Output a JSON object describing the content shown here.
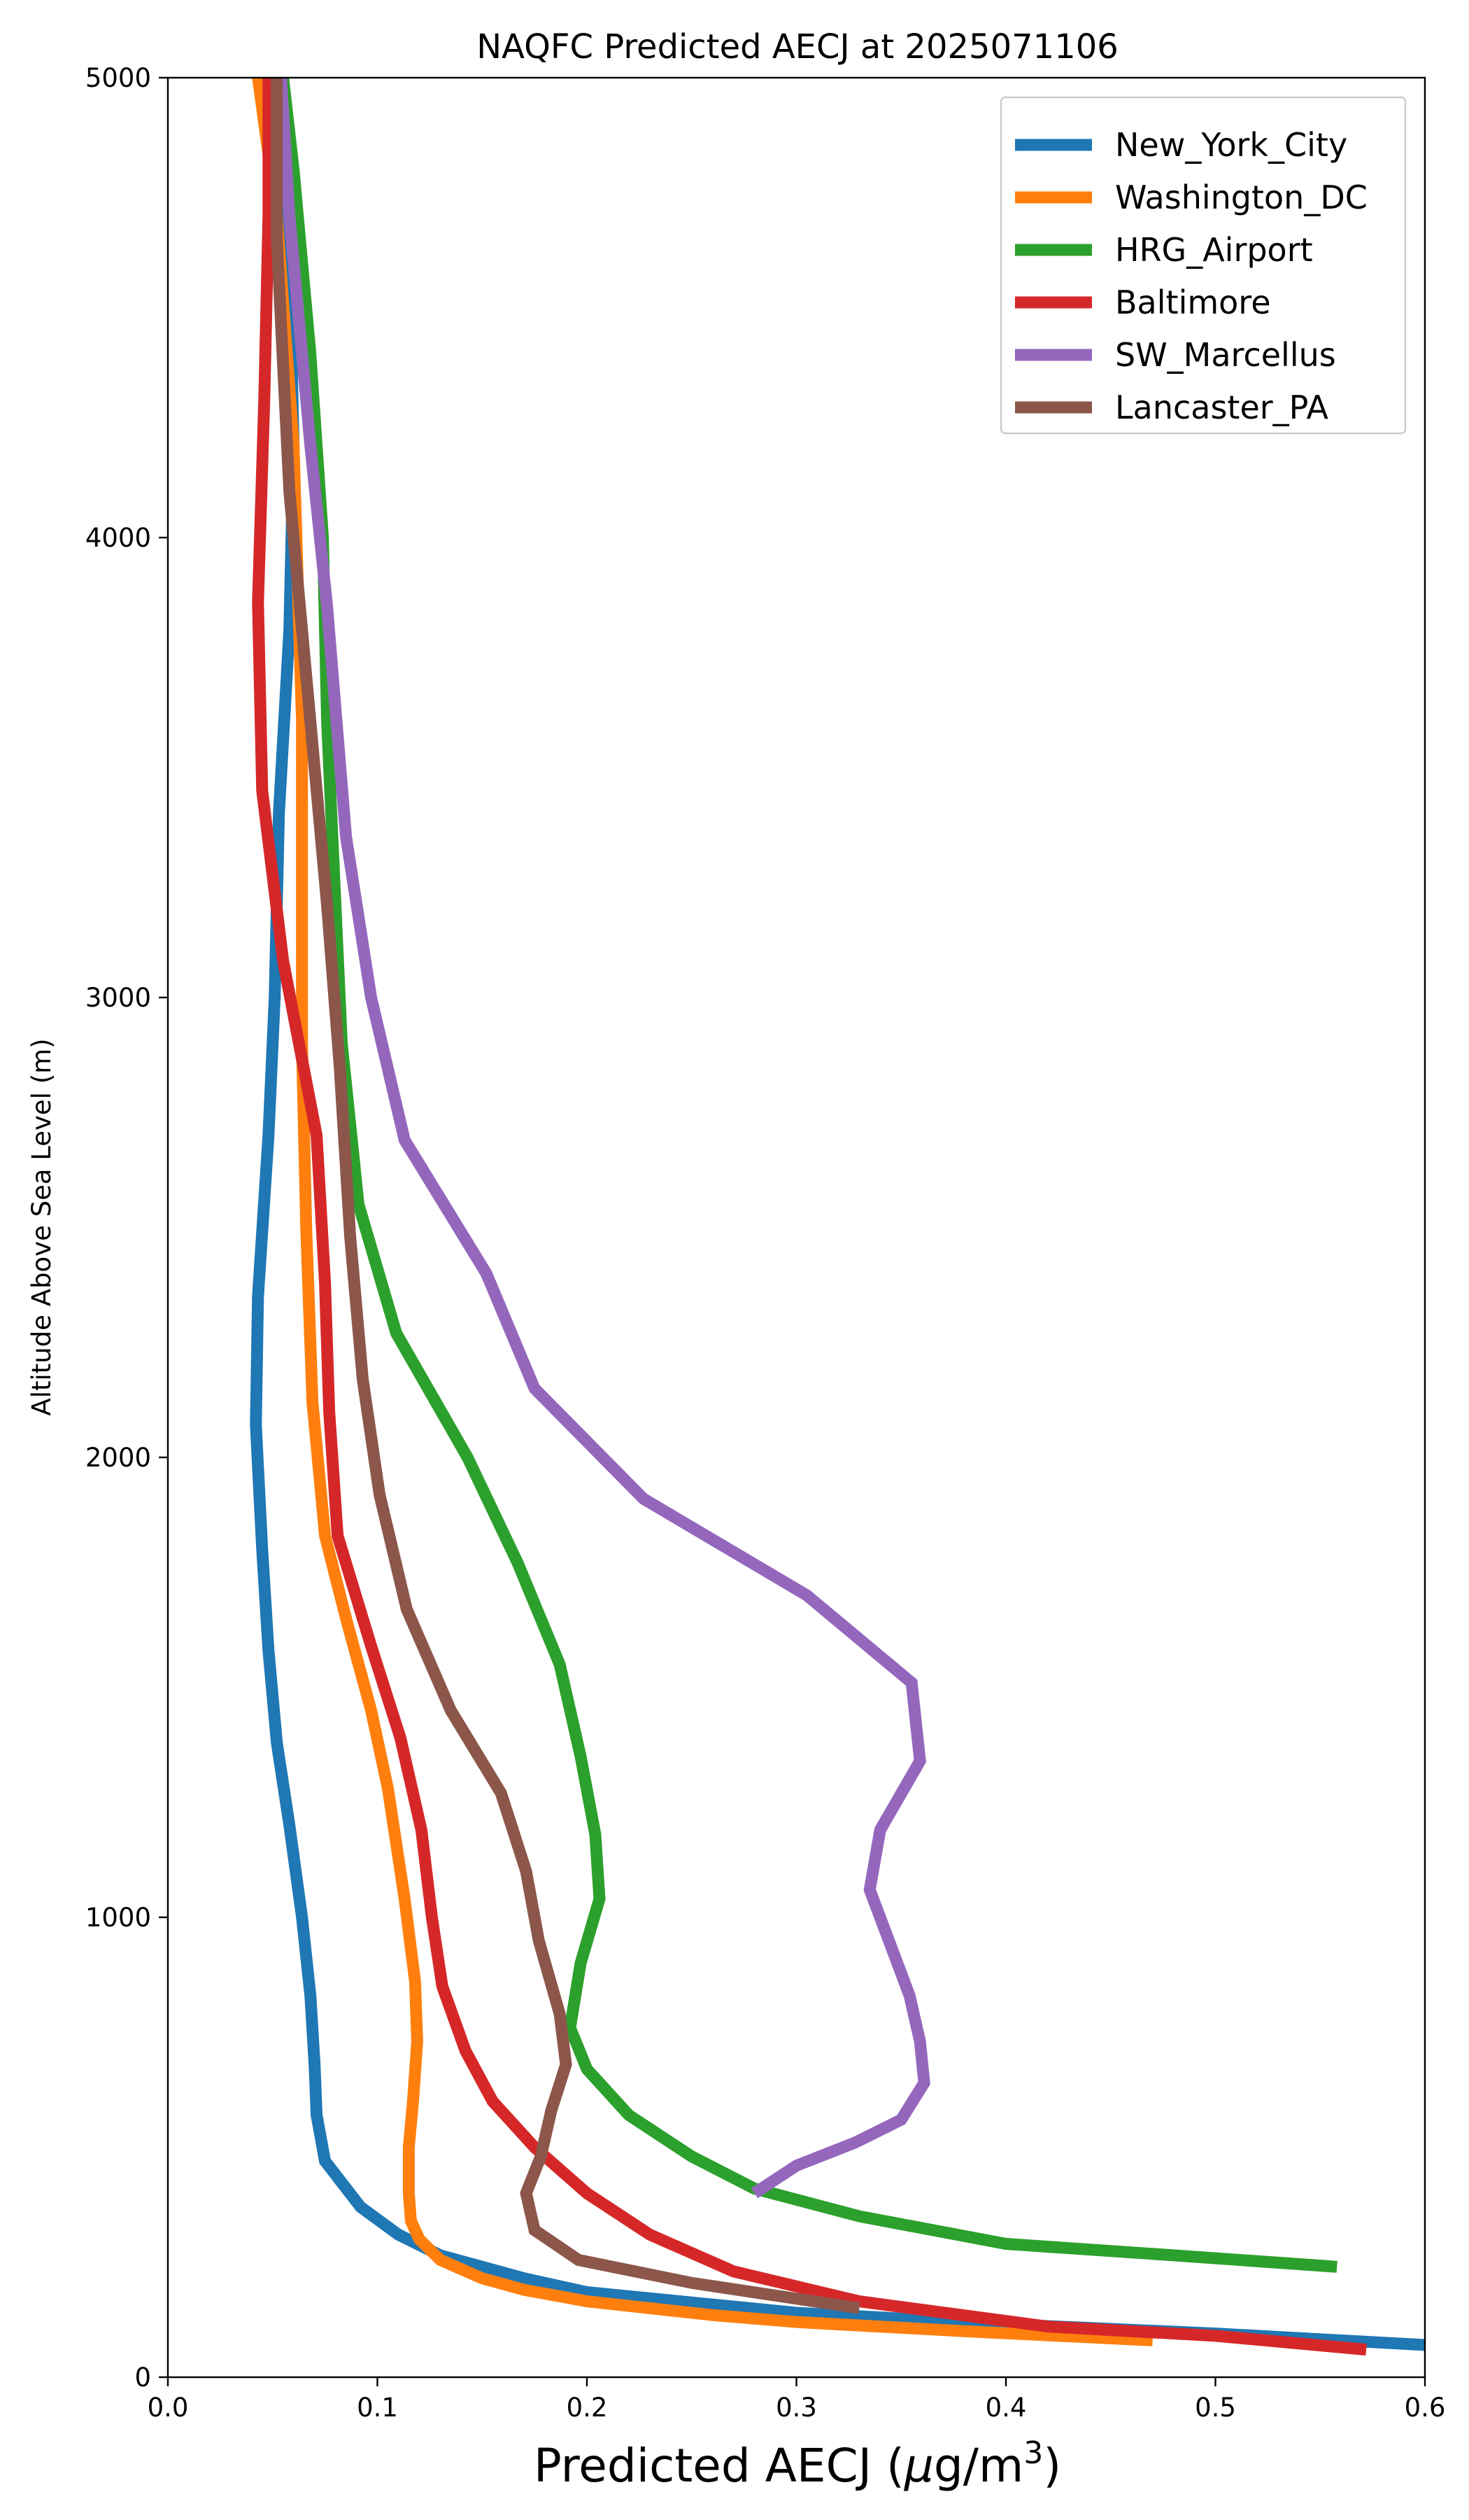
{
  "chart_data": {
    "type": "line",
    "title": "NAQFC Predicted AECJ at 2025071106",
    "xlabel_main": "Predicted AECJ (",
    "xlabel_mu": "μ",
    "xlabel_unit": "g/m",
    "xlabel_sup": "3",
    "xlabel_close": ")",
    "ylabel": "Altitude Above Sea Level (m)",
    "xlim": [
      0.0,
      0.6
    ],
    "ylim": [
      0,
      5000
    ],
    "xticks": [
      "0.0",
      "0.1",
      "0.2",
      "0.3",
      "0.4",
      "0.5",
      "0.6"
    ],
    "yticks": [
      "0",
      "1000",
      "2000",
      "3000",
      "4000",
      "5000"
    ],
    "grid": false,
    "legend_position": "top-right",
    "series": [
      {
        "name": "New_York_City",
        "color": "#1f77b4",
        "points": [
          [
            0.6,
            70
          ],
          [
            0.5,
            95
          ],
          [
            0.4,
            115
          ],
          [
            0.3,
            140
          ],
          [
            0.2,
            185
          ],
          [
            0.17,
            215
          ],
          [
            0.13,
            265
          ],
          [
            0.11,
            310
          ],
          [
            0.092,
            370
          ],
          [
            0.075,
            470
          ],
          [
            0.071,
            570
          ],
          [
            0.07,
            680
          ],
          [
            0.068,
            830
          ],
          [
            0.064,
            1000
          ],
          [
            0.058,
            1200
          ],
          [
            0.052,
            1380
          ],
          [
            0.048,
            1580
          ],
          [
            0.045,
            1800
          ],
          [
            0.042,
            2070
          ],
          [
            0.043,
            2350
          ],
          [
            0.048,
            2700
          ],
          [
            0.051,
            3000
          ],
          [
            0.053,
            3400
          ],
          [
            0.058,
            3800
          ],
          [
            0.06,
            4200
          ],
          [
            0.058,
            4600
          ],
          [
            0.055,
            5000
          ]
        ]
      },
      {
        "name": "Washington_DC",
        "color": "#ff7f0e",
        "points": [
          [
            0.47,
            80
          ],
          [
            0.38,
            100
          ],
          [
            0.3,
            120
          ],
          [
            0.26,
            135
          ],
          [
            0.2,
            165
          ],
          [
            0.17,
            190
          ],
          [
            0.15,
            215
          ],
          [
            0.13,
            255
          ],
          [
            0.12,
            300
          ],
          [
            0.116,
            340
          ],
          [
            0.115,
            400
          ],
          [
            0.115,
            500
          ],
          [
            0.117,
            600
          ],
          [
            0.119,
            730
          ],
          [
            0.118,
            860
          ],
          [
            0.113,
            1040
          ],
          [
            0.105,
            1280
          ],
          [
            0.097,
            1450
          ],
          [
            0.085,
            1650
          ],
          [
            0.075,
            1830
          ],
          [
            0.069,
            2120
          ],
          [
            0.066,
            2500
          ],
          [
            0.064,
            2900
          ],
          [
            0.064,
            3300
          ],
          [
            0.064,
            3600
          ],
          [
            0.06,
            4200
          ],
          [
            0.052,
            4700
          ],
          [
            0.043,
            5000
          ]
        ]
      },
      {
        "name": "HRG_Airport",
        "color": "#2ca02c",
        "points": [
          [
            0.558,
            240
          ],
          [
            0.48,
            265
          ],
          [
            0.4,
            290
          ],
          [
            0.33,
            350
          ],
          [
            0.28,
            410
          ],
          [
            0.25,
            480
          ],
          [
            0.22,
            570
          ],
          [
            0.2,
            670
          ],
          [
            0.192,
            760
          ],
          [
            0.197,
            900
          ],
          [
            0.206,
            1040
          ],
          [
            0.204,
            1180
          ],
          [
            0.197,
            1350
          ],
          [
            0.187,
            1550
          ],
          [
            0.167,
            1770
          ],
          [
            0.143,
            2000
          ],
          [
            0.109,
            2270
          ],
          [
            0.091,
            2550
          ],
          [
            0.083,
            2900
          ],
          [
            0.079,
            3300
          ],
          [
            0.076,
            3600
          ],
          [
            0.074,
            4000
          ],
          [
            0.068,
            4400
          ],
          [
            0.06,
            4800
          ],
          [
            0.055,
            5000
          ]
        ]
      },
      {
        "name": "Baltimore",
        "color": "#d62728",
        "points": [
          [
            0.572,
            60
          ],
          [
            0.5,
            90
          ],
          [
            0.42,
            110
          ],
          [
            0.33,
            165
          ],
          [
            0.27,
            230
          ],
          [
            0.23,
            310
          ],
          [
            0.2,
            400
          ],
          [
            0.175,
            500
          ],
          [
            0.155,
            600
          ],
          [
            0.142,
            710
          ],
          [
            0.131,
            850
          ],
          [
            0.126,
            1000
          ],
          [
            0.121,
            1190
          ],
          [
            0.111,
            1390
          ],
          [
            0.097,
            1590
          ],
          [
            0.081,
            1830
          ],
          [
            0.077,
            2100
          ],
          [
            0.075,
            2380
          ],
          [
            0.071,
            2700
          ],
          [
            0.055,
            3080
          ],
          [
            0.045,
            3450
          ],
          [
            0.043,
            3860
          ],
          [
            0.046,
            4300
          ],
          [
            0.048,
            4700
          ],
          [
            0.048,
            5000
          ]
        ]
      },
      {
        "name": "SW_Marcellus",
        "color": "#9467bd",
        "points": [
          [
            0.28,
            400
          ],
          [
            0.3,
            460
          ],
          [
            0.328,
            510
          ],
          [
            0.35,
            560
          ],
          [
            0.361,
            640
          ],
          [
            0.359,
            730
          ],
          [
            0.354,
            830
          ],
          [
            0.335,
            1060
          ],
          [
            0.34,
            1190
          ],
          [
            0.359,
            1340
          ],
          [
            0.355,
            1510
          ],
          [
            0.305,
            1700
          ],
          [
            0.227,
            1910
          ],
          [
            0.175,
            2150
          ],
          [
            0.152,
            2400
          ],
          [
            0.113,
            2690
          ],
          [
            0.097,
            3000
          ],
          [
            0.085,
            3350
          ],
          [
            0.076,
            3850
          ],
          [
            0.068,
            4200
          ],
          [
            0.058,
            4700
          ],
          [
            0.054,
            5000
          ]
        ]
      },
      {
        "name": "Lancaster_PA",
        "color": "#8c564b",
        "points": [
          [
            0.33,
            150
          ],
          [
            0.25,
            205
          ],
          [
            0.196,
            255
          ],
          [
            0.175,
            320
          ],
          [
            0.171,
            400
          ],
          [
            0.178,
            480
          ],
          [
            0.183,
            580
          ],
          [
            0.19,
            680
          ],
          [
            0.187,
            790
          ],
          [
            0.177,
            950
          ],
          [
            0.171,
            1100
          ],
          [
            0.159,
            1270
          ],
          [
            0.135,
            1450
          ],
          [
            0.114,
            1670
          ],
          [
            0.101,
            1920
          ],
          [
            0.093,
            2170
          ],
          [
            0.087,
            2480
          ],
          [
            0.082,
            2850
          ],
          [
            0.076,
            3200
          ],
          [
            0.068,
            3600
          ],
          [
            0.058,
            4100
          ],
          [
            0.052,
            4650
          ],
          [
            0.052,
            5000
          ]
        ]
      }
    ]
  }
}
